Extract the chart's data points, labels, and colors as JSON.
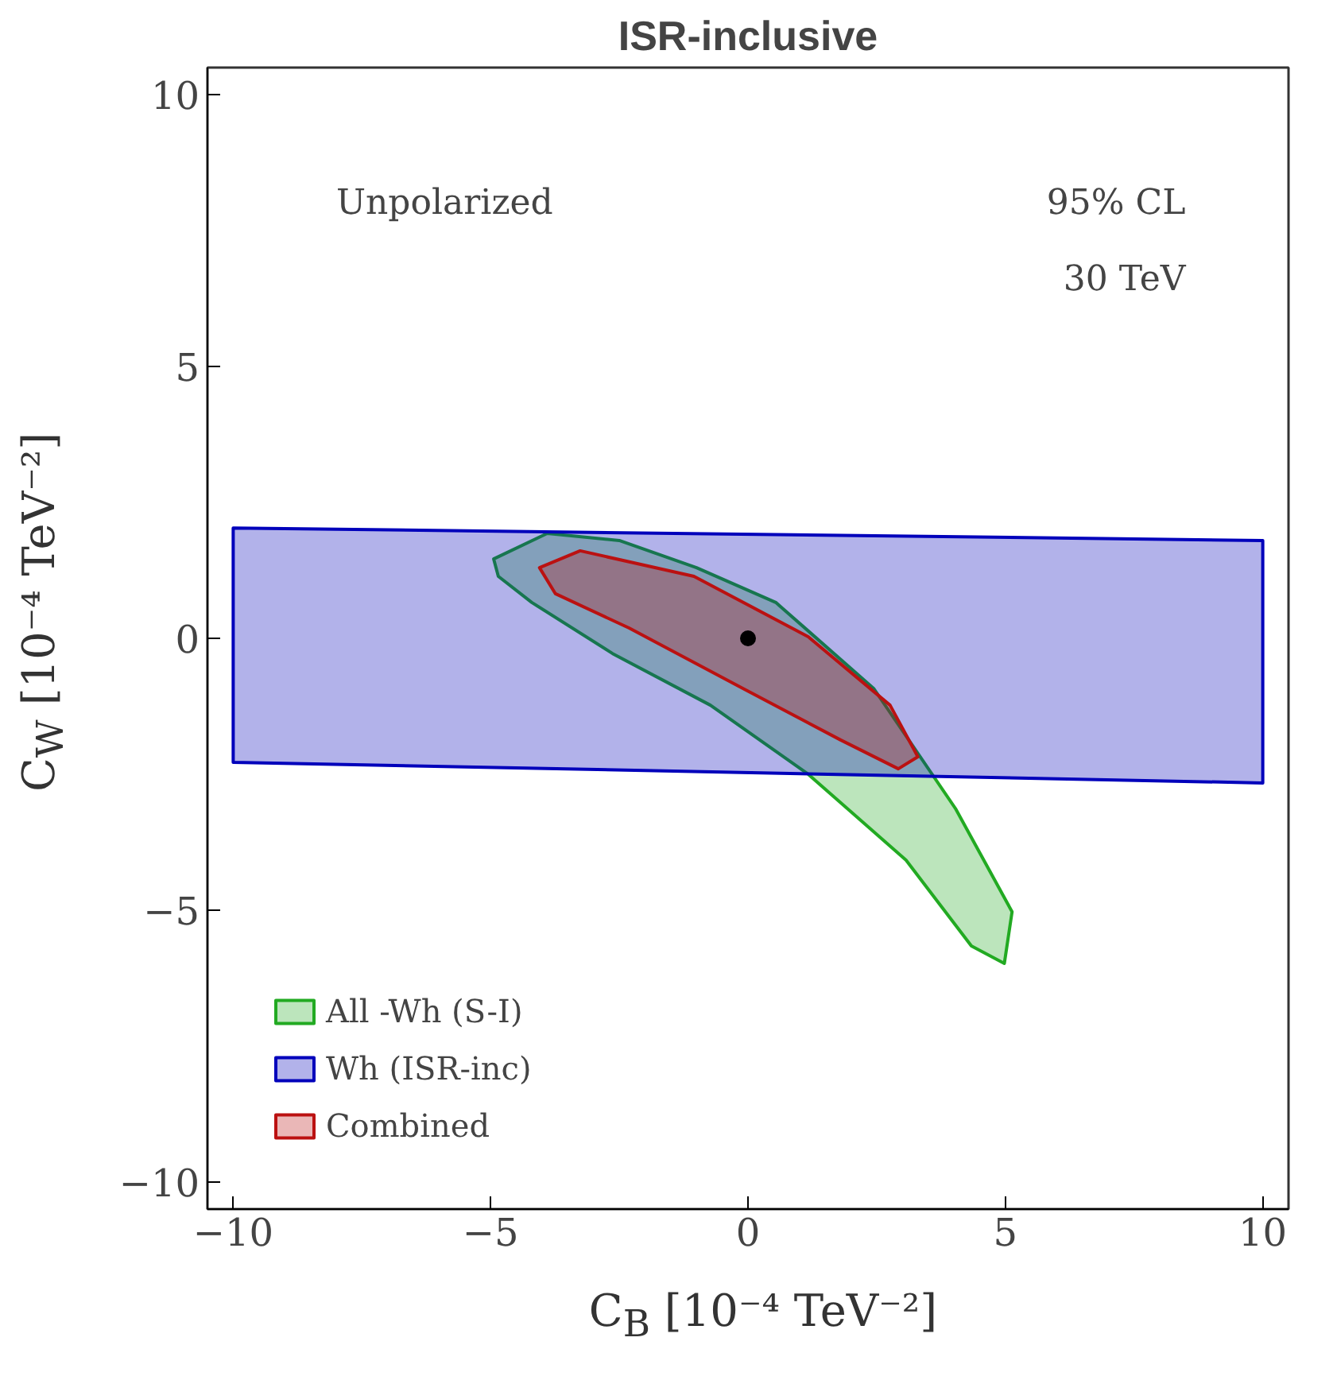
{
  "chart_data": {
    "type": "area",
    "title": "ISR-inclusive",
    "xlabel": "C$_{B}$ [10⁻⁴ TeV⁻²]",
    "ylabel": "C$_{W}$ [10⁻⁴ TeV⁻²]",
    "xlim": [
      -10.5,
      10.5
    ],
    "ylim": [
      -10.5,
      10.5
    ],
    "xticks": [
      -10,
      -5,
      0,
      5,
      10
    ],
    "yticks": [
      -10,
      -5,
      0,
      5,
      10
    ],
    "grid": false,
    "legend": "bottom left",
    "annotations": [
      "Unpolarized",
      "95% CL",
      "30 TeV"
    ],
    "series": [
      {
        "name": "All -Wh (S-I)",
        "color": "#22aa22",
        "x": [
          -4.94,
          -3.9,
          -2.5,
          -1.0,
          0.54,
          2.44,
          4.03,
          5.13,
          4.98,
          4.34,
          3.07,
          1.17,
          -0.73,
          -2.63,
          -4.2,
          -4.85
        ],
        "values": [
          1.46,
          1.93,
          1.8,
          1.3,
          0.66,
          -0.92,
          -3.13,
          -5.03,
          -5.98,
          -5.66,
          -4.08,
          -2.5,
          -1.23,
          -0.28,
          0.66,
          1.14
        ]
      },
      {
        "name": "Wh (ISR-inc)",
        "color": "#0000bb",
        "x": [
          -10,
          10,
          10,
          -10
        ],
        "values": [
          2.03,
          1.8,
          -2.66,
          -2.28
        ]
      },
      {
        "name": "Combined",
        "color": "#bb1111",
        "x": [
          -4.05,
          -3.26,
          -1.05,
          1.17,
          2.76,
          3.3,
          2.92,
          1.8,
          -0.1,
          -2.31,
          -3.74
        ],
        "values": [
          1.3,
          1.61,
          1.14,
          0.03,
          -1.23,
          -2.18,
          -2.4,
          -1.87,
          -0.92,
          0.19,
          0.82
        ]
      },
      {
        "type": "scatter",
        "color": "#000000",
        "x": [
          0
        ],
        "values": [
          0
        ],
        "marker": "circle"
      }
    ]
  }
}
